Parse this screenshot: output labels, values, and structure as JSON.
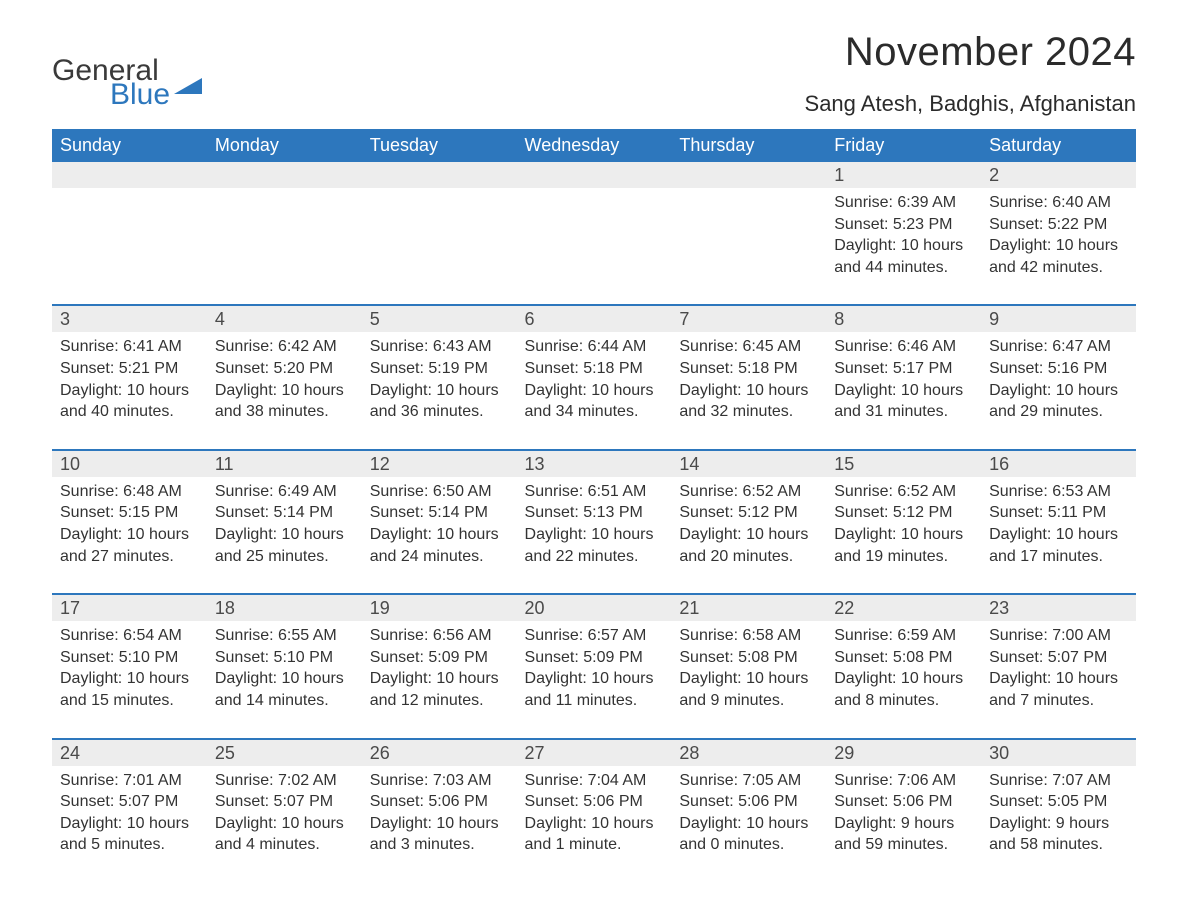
{
  "logo": {
    "word1": "General",
    "word2": "Blue"
  },
  "title": "November 2024",
  "location": "Sang Atesh, Badghis, Afghanistan",
  "colors": {
    "header_bg": "#2d77bd",
    "header_text": "#ffffff",
    "daynum_bg": "#ededed",
    "separator": "#2d77bd",
    "body_text": "#333333",
    "title_text": "#2b2b2b",
    "logo_gray": "#3a3a3a",
    "logo_blue": "#2d77bd",
    "page_bg": "#ffffff"
  },
  "fonts": {
    "family": "Arial",
    "title_size_pt": 30,
    "location_size_pt": 16,
    "header_size_pt": 14,
    "daynum_size_pt": 14,
    "body_size_pt": 12
  },
  "day_names": [
    "Sunday",
    "Monday",
    "Tuesday",
    "Wednesday",
    "Thursday",
    "Friday",
    "Saturday"
  ],
  "labels": {
    "sunrise": "Sunrise:",
    "sunset": "Sunset:",
    "daylight": "Daylight:"
  },
  "weeks": [
    [
      null,
      null,
      null,
      null,
      null,
      {
        "n": "1",
        "sunrise": "6:39 AM",
        "sunset": "5:23 PM",
        "daylight": "10 hours and 44 minutes."
      },
      {
        "n": "2",
        "sunrise": "6:40 AM",
        "sunset": "5:22 PM",
        "daylight": "10 hours and 42 minutes."
      }
    ],
    [
      {
        "n": "3",
        "sunrise": "6:41 AM",
        "sunset": "5:21 PM",
        "daylight": "10 hours and 40 minutes."
      },
      {
        "n": "4",
        "sunrise": "6:42 AM",
        "sunset": "5:20 PM",
        "daylight": "10 hours and 38 minutes."
      },
      {
        "n": "5",
        "sunrise": "6:43 AM",
        "sunset": "5:19 PM",
        "daylight": "10 hours and 36 minutes."
      },
      {
        "n": "6",
        "sunrise": "6:44 AM",
        "sunset": "5:18 PM",
        "daylight": "10 hours and 34 minutes."
      },
      {
        "n": "7",
        "sunrise": "6:45 AM",
        "sunset": "5:18 PM",
        "daylight": "10 hours and 32 minutes."
      },
      {
        "n": "8",
        "sunrise": "6:46 AM",
        "sunset": "5:17 PM",
        "daylight": "10 hours and 31 minutes."
      },
      {
        "n": "9",
        "sunrise": "6:47 AM",
        "sunset": "5:16 PM",
        "daylight": "10 hours and 29 minutes."
      }
    ],
    [
      {
        "n": "10",
        "sunrise": "6:48 AM",
        "sunset": "5:15 PM",
        "daylight": "10 hours and 27 minutes."
      },
      {
        "n": "11",
        "sunrise": "6:49 AM",
        "sunset": "5:14 PM",
        "daylight": "10 hours and 25 minutes."
      },
      {
        "n": "12",
        "sunrise": "6:50 AM",
        "sunset": "5:14 PM",
        "daylight": "10 hours and 24 minutes."
      },
      {
        "n": "13",
        "sunrise": "6:51 AM",
        "sunset": "5:13 PM",
        "daylight": "10 hours and 22 minutes."
      },
      {
        "n": "14",
        "sunrise": "6:52 AM",
        "sunset": "5:12 PM",
        "daylight": "10 hours and 20 minutes."
      },
      {
        "n": "15",
        "sunrise": "6:52 AM",
        "sunset": "5:12 PM",
        "daylight": "10 hours and 19 minutes."
      },
      {
        "n": "16",
        "sunrise": "6:53 AM",
        "sunset": "5:11 PM",
        "daylight": "10 hours and 17 minutes."
      }
    ],
    [
      {
        "n": "17",
        "sunrise": "6:54 AM",
        "sunset": "5:10 PM",
        "daylight": "10 hours and 15 minutes."
      },
      {
        "n": "18",
        "sunrise": "6:55 AM",
        "sunset": "5:10 PM",
        "daylight": "10 hours and 14 minutes."
      },
      {
        "n": "19",
        "sunrise": "6:56 AM",
        "sunset": "5:09 PM",
        "daylight": "10 hours and 12 minutes."
      },
      {
        "n": "20",
        "sunrise": "6:57 AM",
        "sunset": "5:09 PM",
        "daylight": "10 hours and 11 minutes."
      },
      {
        "n": "21",
        "sunrise": "6:58 AM",
        "sunset": "5:08 PM",
        "daylight": "10 hours and 9 minutes."
      },
      {
        "n": "22",
        "sunrise": "6:59 AM",
        "sunset": "5:08 PM",
        "daylight": "10 hours and 8 minutes."
      },
      {
        "n": "23",
        "sunrise": "7:00 AM",
        "sunset": "5:07 PM",
        "daylight": "10 hours and 7 minutes."
      }
    ],
    [
      {
        "n": "24",
        "sunrise": "7:01 AM",
        "sunset": "5:07 PM",
        "daylight": "10 hours and 5 minutes."
      },
      {
        "n": "25",
        "sunrise": "7:02 AM",
        "sunset": "5:07 PM",
        "daylight": "10 hours and 4 minutes."
      },
      {
        "n": "26",
        "sunrise": "7:03 AM",
        "sunset": "5:06 PM",
        "daylight": "10 hours and 3 minutes."
      },
      {
        "n": "27",
        "sunrise": "7:04 AM",
        "sunset": "5:06 PM",
        "daylight": "10 hours and 1 minute."
      },
      {
        "n": "28",
        "sunrise": "7:05 AM",
        "sunset": "5:06 PM",
        "daylight": "10 hours and 0 minutes."
      },
      {
        "n": "29",
        "sunrise": "7:06 AM",
        "sunset": "5:06 PM",
        "daylight": "9 hours and 59 minutes."
      },
      {
        "n": "30",
        "sunrise": "7:07 AM",
        "sunset": "5:05 PM",
        "daylight": "9 hours and 58 minutes."
      }
    ]
  ]
}
